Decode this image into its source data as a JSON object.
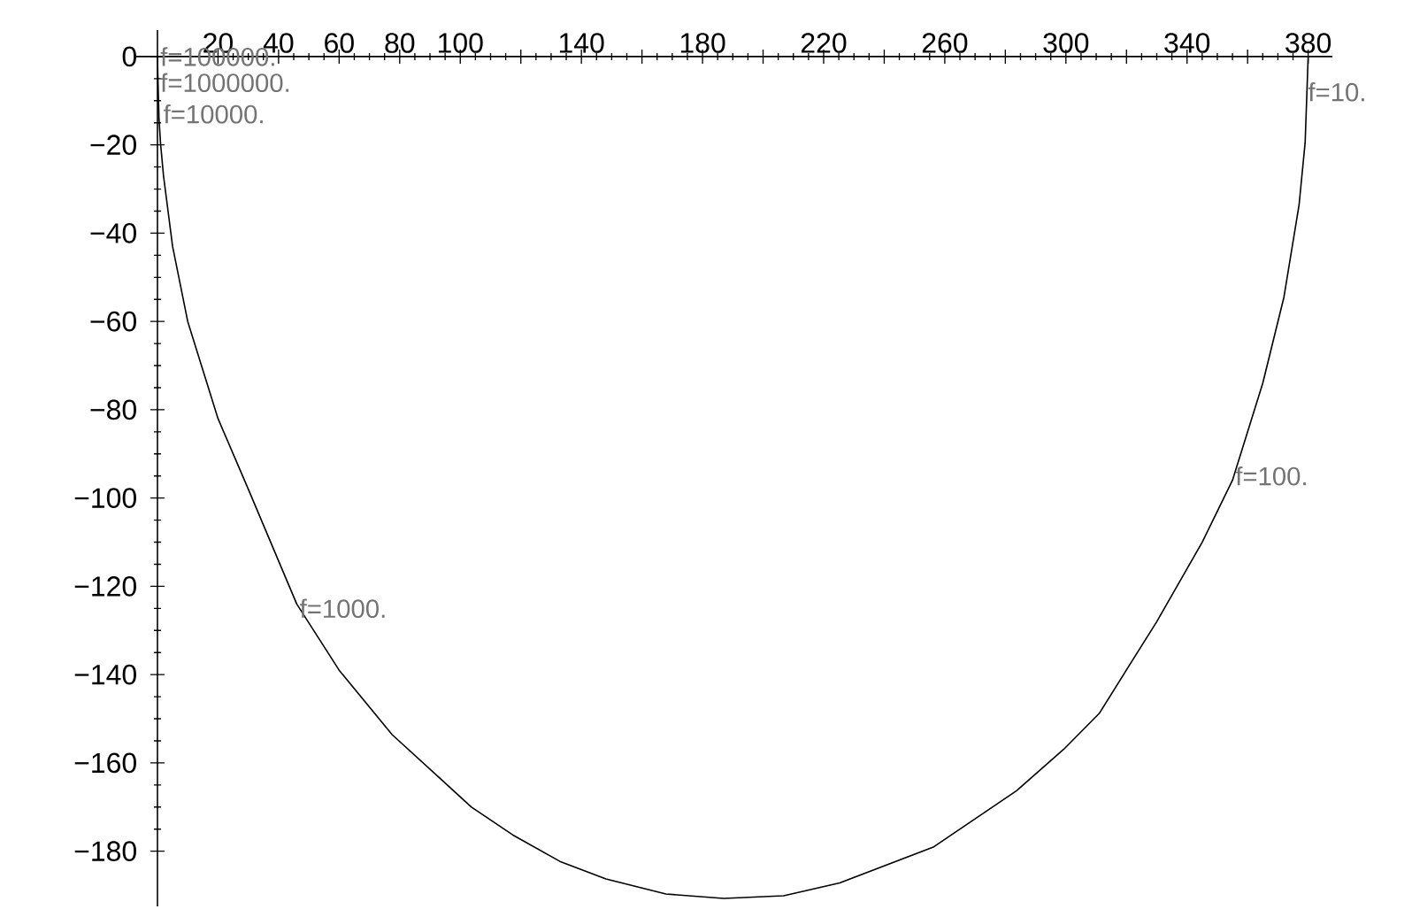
{
  "chart_data": {
    "type": "line",
    "x": [
      0,
      0.2,
      0.5,
      1,
      2,
      5,
      10,
      20,
      30,
      46,
      60,
      77.5,
      103.7,
      117.3,
      132.9,
      148.1,
      167.9,
      187,
      206.8,
      225.3,
      256.4,
      283.7,
      299.3,
      311,
      330,
      345,
      355,
      365,
      372,
      377,
      379,
      380
    ],
    "series": [
      {
        "color": "#000000",
        "values": [
          0,
          -6,
          -13.8,
          -19.5,
          -27,
          -43,
          -60,
          -82,
          -98,
          -124,
          -139,
          -153.6,
          -170,
          -176.3,
          -182.3,
          -186.3,
          -189.7,
          -190.7,
          -190.1,
          -187.2,
          -179,
          -166.3,
          -156.9,
          -148.8,
          -128,
          -110,
          -96,
          -74,
          -54.5,
          -33.6,
          -19.5,
          0
        ]
      }
    ],
    "xlim": [
      -7,
      388
    ],
    "ylim": [
      -192.5,
      6
    ],
    "xticks": [
      20,
      40,
      60,
      80,
      100,
      {
        "value": 120,
        "label": null
      },
      140,
      {
        "value": 160,
        "label": null
      },
      180,
      {
        "value": 200,
        "label": null
      },
      220,
      {
        "value": 240,
        "label": null
      },
      260,
      {
        "value": 280,
        "label": null
      },
      300,
      {
        "value": 320,
        "label": null
      },
      340,
      {
        "value": 360,
        "label": null
      },
      380
    ],
    "yticks": [
      0,
      {
        "value": -20,
        "label": "−20"
      },
      {
        "value": -40,
        "label": "−40"
      },
      {
        "value": -60,
        "label": "−60"
      },
      {
        "value": -80,
        "label": "−80"
      },
      {
        "value": -100,
        "label": "−100"
      },
      {
        "value": -120,
        "label": "−120"
      },
      {
        "value": -140,
        "label": "−140"
      },
      {
        "value": -160,
        "label": "−160"
      },
      {
        "value": -180,
        "label": "−180"
      }
    ],
    "annotations": [
      {
        "text": "f=10.",
        "x": 379,
        "y": -8
      },
      {
        "text": "f=100.",
        "x": 355,
        "y": -95
      },
      {
        "text": "f=1000.",
        "x": 46,
        "y": -125
      },
      {
        "text": "f=10000.",
        "x": 1,
        "y": -13
      },
      {
        "text": "f=100000.",
        "x": 0,
        "y": 0
      },
      {
        "text": "f=1000000.",
        "x": 0,
        "y": 0
      }
    ],
    "grid": false,
    "legend": false,
    "marker": "none",
    "line_style": "solid"
  }
}
